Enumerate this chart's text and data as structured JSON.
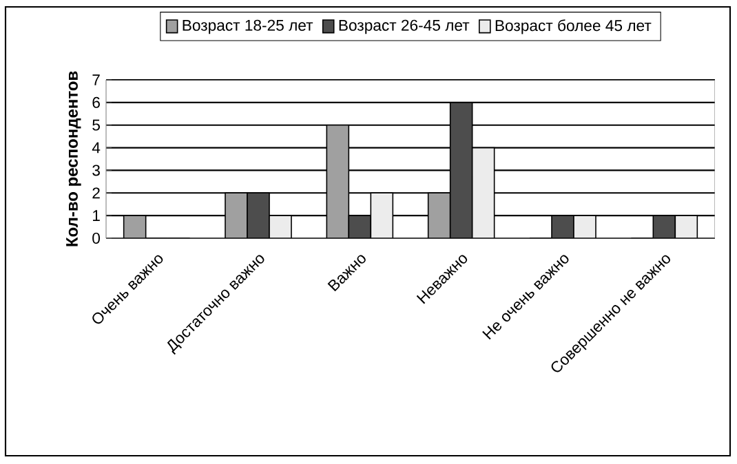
{
  "chart_data": {
    "type": "bar",
    "ylabel": "Кол-во респондентов",
    "categories": [
      "Очень важно",
      "Достаточно важно",
      "Важно",
      "Неважно",
      "Не очень важно",
      "Совершенно не важно"
    ],
    "series": [
      {
        "name": "Возраст 18-25 лет",
        "color": "#a0a0a0",
        "values": [
          1,
          2,
          5,
          2,
          0,
          0
        ]
      },
      {
        "name": "Возраст 26-45 лет",
        "color": "#4d4d4d",
        "values": [
          0,
          2,
          1,
          6,
          1,
          1
        ]
      },
      {
        "name": "Возраст более 45 лет",
        "color": "#ececec",
        "values": [
          0,
          1,
          2,
          4,
          1,
          1
        ]
      }
    ],
    "ylim": [
      0,
      7
    ],
    "yticks": [
      0,
      1,
      2,
      3,
      4,
      5,
      6,
      7
    ],
    "grid": "y",
    "legend": "top"
  }
}
